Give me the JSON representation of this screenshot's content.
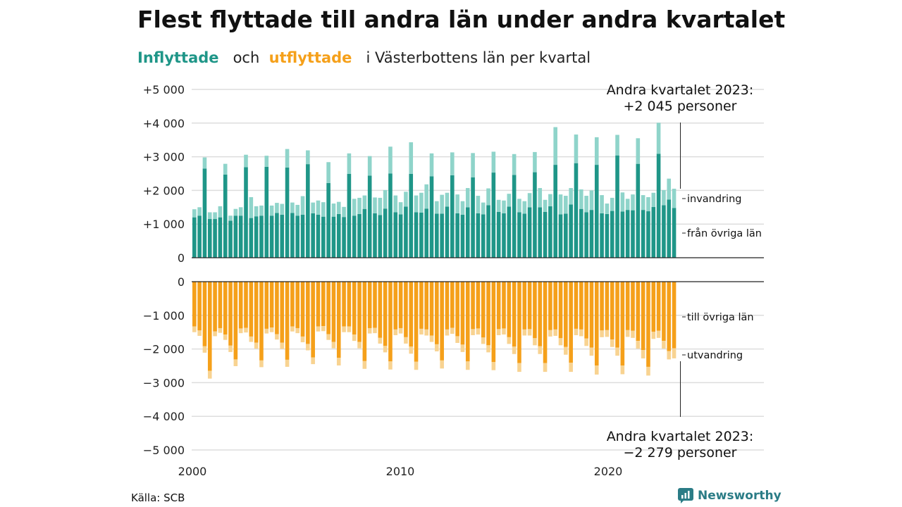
{
  "title": "Flest flyttade till andra län under andra kvartalet",
  "subtitle": {
    "inflyttade": "Inflyttade",
    "och": "och",
    "utflyttade": "utflyttade",
    "rest": "i Västerbottens län per kvartal"
  },
  "colors": {
    "in_main": "#1f9688",
    "in_light": "#8fd4ca",
    "out_main": "#f5a01a",
    "out_light": "#f8d391",
    "grid": "#dddddd"
  },
  "annotations": {
    "top_label": [
      "Andra kvartalet 2023:",
      "+2 045 personer"
    ],
    "bottom_label": [
      "Andra kvartalet 2023:",
      "−2 279 personer"
    ],
    "invandring": "invandring",
    "fran_ovriga_lan": "från övriga län",
    "till_ovriga_lan": "till övriga län",
    "utvandring": "utvandring"
  },
  "source": "Källa: SCB",
  "brand": "Newsworthy",
  "chart_data": {
    "type": "bar",
    "stacked": true,
    "x_ticks": [
      "2000",
      "2010",
      "2020"
    ],
    "y_ticks": [
      "+5 000",
      "+4 000",
      "+3 000",
      "+2 000",
      "+1 000",
      "0",
      "0",
      "−1 000",
      "−2 000",
      "−3 000",
      "−4 000",
      "−5 000"
    ],
    "top_ylim": [
      0,
      5000
    ],
    "bottom_ylim": [
      -5000,
      0
    ],
    "period": "2000 Q1 – 2023 Q2, quarterly",
    "series": [
      {
        "name": "från övriga län",
        "panel": "top",
        "values": [
          1200,
          1250,
          2650,
          1150,
          1150,
          1200,
          2470,
          1100,
          1250,
          1250,
          2690,
          1180,
          1230,
          1250,
          2700,
          1250,
          1330,
          1280,
          2680,
          1330,
          1250,
          1280,
          2780,
          1320,
          1280,
          1220,
          2220,
          1220,
          1300,
          1210,
          2490,
          1250,
          1300,
          1450,
          2440,
          1320,
          1270,
          1460,
          2500,
          1350,
          1290,
          1520,
          2490,
          1350,
          1340,
          1460,
          2420,
          1310,
          1310,
          1520,
          2450,
          1320,
          1280,
          1500,
          2390,
          1320,
          1290,
          1560,
          2530,
          1360,
          1320,
          1520,
          2460,
          1350,
          1310,
          1500,
          2540,
          1500,
          1360,
          1530,
          2760,
          1290,
          1310,
          1580,
          2810,
          1450,
          1350,
          1420,
          2760,
          1320,
          1300,
          1390,
          3040,
          1370,
          1420,
          1410,
          2790,
          1420,
          1380,
          1510,
          3090,
          1560,
          1730,
          1480
        ]
      },
      {
        "name": "invandring",
        "panel": "top",
        "values": [
          240,
          250,
          330,
          200,
          200,
          330,
          320,
          150,
          200,
          250,
          370,
          620,
          300,
          300,
          330,
          300,
          300,
          320,
          550,
          310,
          320,
          550,
          410,
          320,
          420,
          430,
          620,
          390,
          360,
          300,
          610,
          500,
          480,
          400,
          580,
          470,
          510,
          550,
          800,
          500,
          360,
          440,
          940,
          500,
          590,
          720,
          680,
          370,
          560,
          410,
          680,
          560,
          400,
          570,
          720,
          520,
          350,
          500,
          620,
          360,
          380,
          380,
          620,
          400,
          370,
          420,
          600,
          570,
          360,
          360,
          1120,
          590,
          530,
          490,
          850,
          580,
          490,
          580,
          820,
          540,
          310,
          390,
          610,
          570,
          330,
          470,
          760,
          440,
          420,
          420,
          920,
          450,
          620,
          570
        ]
      },
      {
        "name": "till övriga län",
        "panel": "bottom",
        "values": [
          -1330,
          -1450,
          -1920,
          -2650,
          -1480,
          -1380,
          -1570,
          -1900,
          -2310,
          -1390,
          -1370,
          -1630,
          -1810,
          -2340,
          -1400,
          -1360,
          -1560,
          -1810,
          -2320,
          -1330,
          -1380,
          -1630,
          -1850,
          -2250,
          -1330,
          -1320,
          -1560,
          -1790,
          -2260,
          -1330,
          -1330,
          -1570,
          -1790,
          -2360,
          -1380,
          -1370,
          -1670,
          -1910,
          -2370,
          -1420,
          -1380,
          -1650,
          -1930,
          -2380,
          -1400,
          -1420,
          -1600,
          -1860,
          -2340,
          -1420,
          -1370,
          -1620,
          -1870,
          -2370,
          -1410,
          -1390,
          -1660,
          -1890,
          -2390,
          -1410,
          -1390,
          -1650,
          -1930,
          -2420,
          -1420,
          -1410,
          -1680,
          -1920,
          -2420,
          -1440,
          -1420,
          -1680,
          -1940,
          -2410,
          -1400,
          -1420,
          -1690,
          -1960,
          -2490,
          -1450,
          -1440,
          -1720,
          -1960,
          -2490,
          -1440,
          -1460,
          -1760,
          -2030,
          -2530,
          -1490,
          -1460,
          -1760,
          -2060,
          -1980
        ]
      },
      {
        "name": "utvandring",
        "panel": "bottom",
        "values": [
          -170,
          -160,
          -190,
          -230,
          -140,
          -140,
          -160,
          -190,
          -200,
          -140,
          -140,
          -160,
          -180,
          -200,
          -140,
          -140,
          -160,
          -190,
          -210,
          -150,
          -150,
          -170,
          -190,
          -200,
          -150,
          -150,
          -170,
          -190,
          -230,
          -170,
          -170,
          -190,
          -190,
          -230,
          -160,
          -160,
          -170,
          -190,
          -240,
          -170,
          -160,
          -190,
          -210,
          -240,
          -170,
          -180,
          -190,
          -210,
          -240,
          -180,
          -180,
          -200,
          -220,
          -250,
          -180,
          -180,
          -190,
          -210,
          -240,
          -180,
          -180,
          -200,
          -220,
          -260,
          -180,
          -190,
          -210,
          -230,
          -260,
          -190,
          -190,
          -210,
          -230,
          -270,
          -190,
          -200,
          -220,
          -240,
          -270,
          -200,
          -200,
          -220,
          -240,
          -260,
          -200,
          -210,
          -230,
          -250,
          -260,
          -210,
          -210,
          -230,
          -250,
          -299
        ]
      }
    ]
  }
}
